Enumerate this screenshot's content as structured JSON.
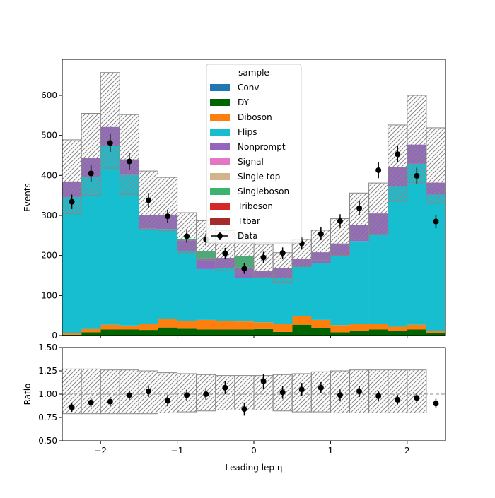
{
  "chart_data": [
    {
      "type": "bar",
      "stacked": true,
      "xlabel": "Leading lep η",
      "ylabel": "Events",
      "xlim": [
        -2.5,
        2.5
      ],
      "ylim": [
        0,
        690
      ],
      "x_ticks": [
        -2,
        -1,
        0,
        1,
        2
      ],
      "x_tick_labels": [
        "−2",
        "−1",
        "0",
        "1",
        "2"
      ],
      "y_ticks": [
        0,
        100,
        200,
        300,
        400,
        500,
        600
      ],
      "y_tick_labels": [
        "0",
        "100",
        "200",
        "300",
        "400",
        "500",
        "600"
      ],
      "bin_edges": [
        -2.5,
        -2.25,
        -2.0,
        -1.75,
        -1.5,
        -1.25,
        -1.0,
        -0.75,
        -0.5,
        -0.25,
        0.0,
        0.25,
        0.5,
        0.75,
        1.0,
        1.25,
        1.5,
        1.75,
        2.0,
        2.25,
        2.5
      ],
      "legend": {
        "title": "sample",
        "position": "top-center",
        "entries": [
          "Conv",
          "DY",
          "Diboson",
          "Flips",
          "Nonprompt",
          "Signal",
          "Single top",
          "Singleboson",
          "Triboson",
          "Ttbar",
          "Data"
        ]
      },
      "series": [
        {
          "name": "Conv",
          "color": "#1f77b4",
          "values": [
            0,
            0,
            0,
            0,
            0,
            0,
            0,
            0,
            0,
            0,
            0,
            0,
            0,
            0,
            0,
            0,
            0,
            0,
            0,
            0
          ]
        },
        {
          "name": "DY",
          "color": "#006400",
          "values": [
            2,
            8,
            15,
            15,
            14,
            20,
            17,
            15,
            15,
            15,
            16,
            9,
            27,
            18,
            8,
            12,
            15,
            12,
            15,
            7
          ]
        },
        {
          "name": "Diboson",
          "color": "#ff7f0e",
          "values": [
            4,
            8,
            12,
            10,
            15,
            21,
            19,
            24,
            22,
            20,
            17,
            20,
            22,
            21,
            18,
            17,
            14,
            10,
            12,
            5
          ]
        },
        {
          "name": "Flips",
          "color": "#17becf",
          "values": [
            340,
            380,
            446,
            376,
            238,
            225,
            175,
            127,
            132,
            109,
            112,
            115,
            123,
            142,
            173,
            207,
            224,
            351,
            402,
            340
          ]
        },
        {
          "name": "Nonprompt",
          "color": "#9467bd",
          "values": [
            39,
            47,
            48,
            39,
            33,
            36,
            27,
            27,
            25,
            26,
            17,
            25,
            20,
            27,
            31,
            40,
            52,
            48,
            48,
            30
          ]
        },
        {
          "name": "Signal",
          "color": "#e377c2",
          "values": [
            0,
            0,
            0,
            0,
            0,
            0,
            0,
            0,
            0,
            0,
            0,
            0,
            0,
            0,
            0,
            0,
            0,
            0,
            0,
            0
          ]
        },
        {
          "name": "Single top",
          "color": "#d2b48c",
          "values": [
            0,
            0,
            0,
            0,
            0,
            0,
            0,
            0,
            0,
            0,
            0,
            0,
            0,
            0,
            0,
            0,
            0,
            0,
            0,
            0
          ]
        },
        {
          "name": "Singleboson",
          "color": "#3cb371",
          "values": [
            0,
            0,
            0,
            0,
            0,
            0,
            2,
            18,
            0,
            29,
            0,
            0,
            0,
            0,
            0,
            0,
            0,
            0,
            0,
            0
          ]
        },
        {
          "name": "Triboson",
          "color": "#d62728",
          "values": [
            0,
            0,
            0,
            0,
            0,
            0,
            0,
            0,
            0,
            0,
            0,
            0,
            0,
            0,
            0,
            0,
            0,
            0,
            0,
            0
          ]
        },
        {
          "name": "Ttbar",
          "color": "#a52a2a",
          "values": [
            0,
            0,
            0,
            0,
            0,
            0,
            0,
            0,
            0,
            0,
            0,
            0,
            0,
            0,
            0,
            0,
            0,
            0,
            0,
            0
          ]
        }
      ],
      "uncertainty_band": {
        "low": [
          304,
          350,
          418,
          352,
          265,
          262,
          207,
          188,
          162,
          151,
          145,
          133,
          172,
          188,
          200,
          240,
          252,
          335,
          382,
          330
        ],
        "high": [
          489,
          555,
          657,
          552,
          411,
          395,
          307,
          287,
          262,
          258,
          228,
          207,
          240,
          263,
          292,
          356,
          381,
          526,
          600,
          519
        ]
      },
      "data": {
        "name": "Data",
        "x": [
          -2.375,
          -2.125,
          -1.875,
          -1.625,
          -1.375,
          -1.125,
          -0.875,
          -0.625,
          -0.375,
          -0.125,
          0.125,
          0.375,
          0.625,
          0.875,
          1.125,
          1.375,
          1.625,
          1.875,
          2.125,
          2.375
        ],
        "y": [
          334,
          405,
          481,
          435,
          338,
          298,
          248,
          240,
          205,
          167,
          195,
          206,
          230,
          254,
          286,
          318,
          413,
          453,
          399,
          285
        ],
        "yerr": [
          18,
          20,
          22,
          21,
          18,
          17,
          16,
          15,
          14,
          13,
          14,
          14,
          15,
          16,
          17,
          18,
          20,
          21,
          20,
          17
        ]
      }
    },
    {
      "type": "scatter",
      "xlabel": "Leading lep η",
      "ylabel": "Ratio",
      "xlim": [
        -2.5,
        2.5
      ],
      "ylim": [
        0.5,
        1.5
      ],
      "x_ticks": [
        -2,
        -1,
        0,
        1,
        2
      ],
      "x_tick_labels": [
        "−2",
        "−1",
        "0",
        "1",
        "2"
      ],
      "y_ticks": [
        0.5,
        0.75,
        1.0,
        1.25,
        1.5
      ],
      "y_tick_labels": [
        "0.50",
        "0.75",
        "1.00",
        "1.25",
        "1.50"
      ],
      "reference_line": 1.0,
      "band": {
        "low": [
          0.79,
          0.79,
          0.79,
          0.79,
          0.79,
          0.8,
          0.81,
          0.82,
          0.83,
          0.83,
          0.83,
          0.82,
          0.81,
          0.81,
          0.8,
          0.8,
          0.8,
          0.8,
          0.8,
          null
        ],
        "high": [
          1.27,
          1.27,
          1.26,
          1.26,
          1.25,
          1.23,
          1.22,
          1.21,
          1.2,
          1.2,
          1.2,
          1.21,
          1.22,
          1.24,
          1.25,
          1.26,
          1.26,
          1.26,
          1.26,
          null
        ]
      },
      "x": [
        -2.375,
        -2.125,
        -1.875,
        -1.625,
        -1.375,
        -1.125,
        -0.875,
        -0.625,
        -0.375,
        -0.125,
        0.125,
        0.375,
        0.625,
        0.875,
        1.125,
        1.375,
        1.625,
        1.875,
        2.125,
        2.375
      ],
      "y": [
        0.86,
        0.91,
        0.92,
        0.99,
        1.03,
        0.93,
        0.99,
        1.0,
        1.07,
        0.84,
        1.14,
        1.02,
        1.05,
        1.07,
        0.99,
        1.03,
        0.98,
        0.94,
        0.96,
        0.9
      ],
      "yerr": [
        0.05,
        0.05,
        0.05,
        0.05,
        0.06,
        0.06,
        0.06,
        0.06,
        0.07,
        0.07,
        0.08,
        0.07,
        0.07,
        0.06,
        0.06,
        0.06,
        0.05,
        0.05,
        0.05,
        0.05
      ]
    }
  ]
}
